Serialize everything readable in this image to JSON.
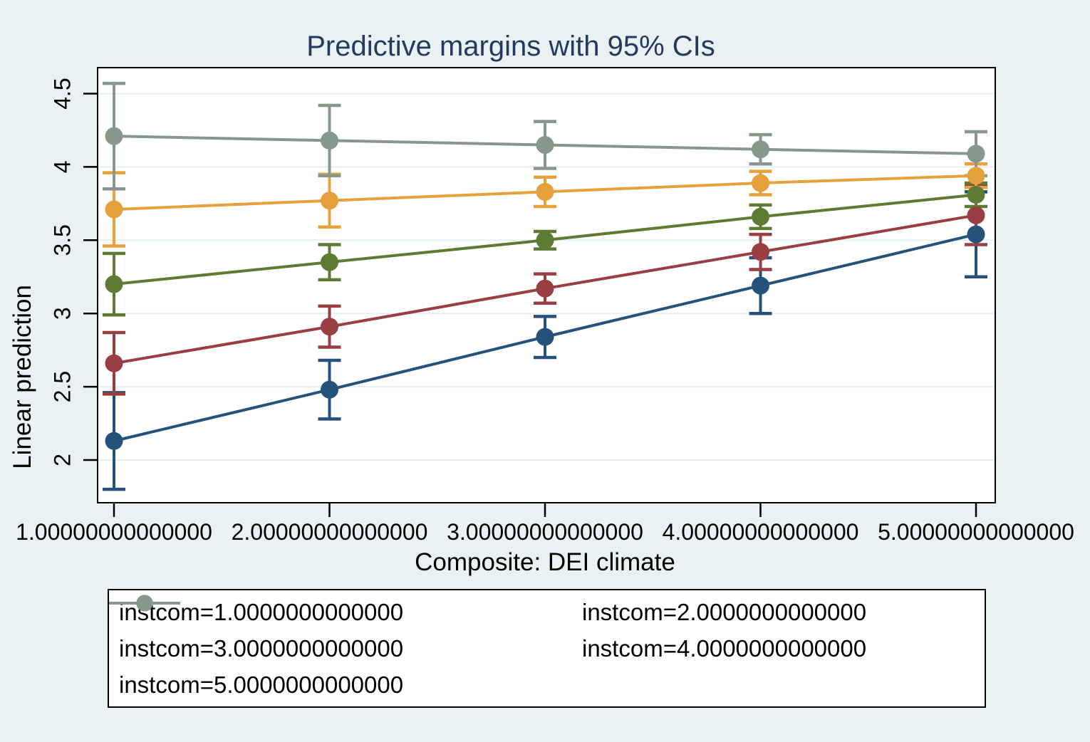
{
  "chart": {
    "title": "Predictive margins with 95% CIs",
    "xlabel": "Composite: DEI climate",
    "ylabel": "Linear prediction"
  },
  "chart_data": {
    "type": "line",
    "title": "Predictive margins with 95% CIs",
    "xlabel": "Composite: DEI climate",
    "ylabel": "Linear prediction",
    "x": [
      1,
      2,
      3,
      4,
      5
    ],
    "x_tick_labels": [
      "1.00000000000000",
      "2.00000000000000",
      "3.00000000000000",
      "4.00000000000000",
      "5.00000000000000"
    ],
    "y_ticks": [
      2,
      2.5,
      3,
      3.5,
      4,
      4.5
    ],
    "y_tick_labels": [
      "2",
      "2.5",
      "3",
      "3.5",
      "4",
      "4.5"
    ],
    "ylim": [
      1.71,
      4.68
    ],
    "xlim": [
      0.92,
      5.09
    ],
    "grid": true,
    "error_bars": "95% CI",
    "legend_position": "bottom",
    "series": [
      {
        "name": "instcom=1.0000000000000",
        "color": "#25527b",
        "values": [
          2.13,
          2.48,
          2.84,
          3.19,
          3.54
        ],
        "ci_low": [
          1.8,
          2.28,
          2.7,
          3.0,
          3.25
        ],
        "ci_high": [
          2.46,
          2.68,
          2.98,
          3.38,
          3.83
        ]
      },
      {
        "name": "instcom=2.0000000000000",
        "color": "#993e43",
        "values": [
          2.66,
          2.91,
          3.17,
          3.42,
          3.67
        ],
        "ci_low": [
          2.45,
          2.77,
          3.07,
          3.3,
          3.47
        ],
        "ci_high": [
          2.87,
          3.05,
          3.27,
          3.54,
          3.87
        ]
      },
      {
        "name": "instcom=3.0000000000000",
        "color": "#5d7b33",
        "values": [
          3.2,
          3.35,
          3.5,
          3.66,
          3.81
        ],
        "ci_low": [
          2.99,
          3.23,
          3.44,
          3.58,
          3.73
        ],
        "ci_high": [
          3.41,
          3.47,
          3.56,
          3.74,
          3.89
        ]
      },
      {
        "name": "instcom=4.0000000000000",
        "color": "#e7a13c",
        "values": [
          3.71,
          3.77,
          3.83,
          3.89,
          3.94
        ],
        "ci_low": [
          3.46,
          3.59,
          3.73,
          3.81,
          3.86
        ],
        "ci_high": [
          3.96,
          3.95,
          3.93,
          3.97,
          4.02
        ]
      },
      {
        "name": "instcom=5.0000000000000",
        "color": "#86988d",
        "values": [
          4.21,
          4.18,
          4.15,
          4.12,
          4.09
        ],
        "ci_low": [
          3.85,
          3.94,
          3.99,
          4.02,
          3.94
        ],
        "ci_high": [
          4.57,
          4.42,
          4.31,
          4.22,
          4.24
        ]
      }
    ],
    "colors": {
      "background": "#e9f1f3",
      "plot_background": "#ffffff",
      "gridline": "#e6eff2",
      "axis": "#000000",
      "title": "#25395e"
    }
  }
}
